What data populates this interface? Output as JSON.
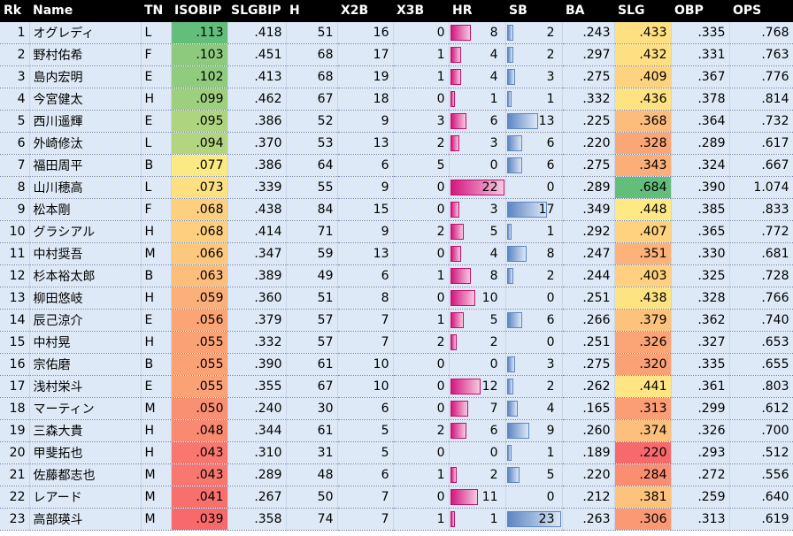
{
  "columns": [
    "Rk",
    "Name",
    "TN",
    "ISOBIP",
    "SLGBIP",
    "H",
    "X2B",
    "X3B",
    "HR",
    "SB",
    "BA",
    "SLG",
    "OBP",
    "OPS"
  ],
  "rows": [
    {
      "rk": "1",
      "name": "オグレディ",
      "tn": "L",
      "isobip": ".113",
      "slgbip": ".418",
      "h": "51",
      "x2b": "16",
      "x3b": "0",
      "hr": "8",
      "sb": "2",
      "ba": ".243",
      "slg": ".433",
      "obp": ".335",
      "ops": ".768"
    },
    {
      "rk": "2",
      "name": "野村佑希",
      "tn": "F",
      "isobip": ".103",
      "slgbip": ".451",
      "h": "68",
      "x2b": "17",
      "x3b": "1",
      "hr": "4",
      "sb": "2",
      "ba": ".297",
      "slg": ".432",
      "obp": ".331",
      "ops": ".763"
    },
    {
      "rk": "3",
      "name": "島内宏明",
      "tn": "E",
      "isobip": ".102",
      "slgbip": ".413",
      "h": "68",
      "x2b": "19",
      "x3b": "1",
      "hr": "4",
      "sb": "3",
      "ba": ".275",
      "slg": ".409",
      "obp": ".367",
      "ops": ".776"
    },
    {
      "rk": "4",
      "name": "今宮健太",
      "tn": "H",
      "isobip": ".099",
      "slgbip": ".462",
      "h": "67",
      "x2b": "18",
      "x3b": "0",
      "hr": "1",
      "sb": "1",
      "ba": ".332",
      "slg": ".436",
      "obp": ".378",
      "ops": ".814"
    },
    {
      "rk": "5",
      "name": "西川遥輝",
      "tn": "E",
      "isobip": ".095",
      "slgbip": ".386",
      "h": "52",
      "x2b": "9",
      "x3b": "3",
      "hr": "6",
      "sb": "13",
      "ba": ".225",
      "slg": ".368",
      "obp": ".364",
      "ops": ".732"
    },
    {
      "rk": "6",
      "name": "外崎修汰",
      "tn": "L",
      "isobip": ".094",
      "slgbip": ".370",
      "h": "53",
      "x2b": "13",
      "x3b": "2",
      "hr": "3",
      "sb": "6",
      "ba": ".220",
      "slg": ".328",
      "obp": ".289",
      "ops": ".617"
    },
    {
      "rk": "7",
      "name": "福田周平",
      "tn": "B",
      "isobip": ".077",
      "slgbip": ".386",
      "h": "64",
      "x2b": "6",
      "x3b": "5",
      "hr": "0",
      "sb": "6",
      "ba": ".275",
      "slg": ".343",
      "obp": ".324",
      "ops": ".667"
    },
    {
      "rk": "8",
      "name": "山川穂高",
      "tn": "L",
      "isobip": ".073",
      "slgbip": ".339",
      "h": "55",
      "x2b": "9",
      "x3b": "0",
      "hr": "22",
      "sb": "0",
      "ba": ".289",
      "slg": ".684",
      "obp": ".390",
      "ops": "1.074"
    },
    {
      "rk": "9",
      "name": "松本剛",
      "tn": "F",
      "isobip": ".068",
      "slgbip": ".438",
      "h": "84",
      "x2b": "15",
      "x3b": "0",
      "hr": "3",
      "sb": "17",
      "ba": ".349",
      "slg": ".448",
      "obp": ".385",
      "ops": ".833"
    },
    {
      "rk": "10",
      "name": "グラシアル",
      "tn": "H",
      "isobip": ".068",
      "slgbip": ".414",
      "h": "71",
      "x2b": "9",
      "x3b": "2",
      "hr": "5",
      "sb": "1",
      "ba": ".292",
      "slg": ".407",
      "obp": ".365",
      "ops": ".772"
    },
    {
      "rk": "11",
      "name": "中村奨吾",
      "tn": "M",
      "isobip": ".066",
      "slgbip": ".347",
      "h": "59",
      "x2b": "13",
      "x3b": "0",
      "hr": "4",
      "sb": "8",
      "ba": ".247",
      "slg": ".351",
      "obp": ".330",
      "ops": ".681"
    },
    {
      "rk": "12",
      "name": "杉本裕太郎",
      "tn": "B",
      "isobip": ".063",
      "slgbip": ".389",
      "h": "49",
      "x2b": "6",
      "x3b": "1",
      "hr": "8",
      "sb": "2",
      "ba": ".244",
      "slg": ".403",
      "obp": ".325",
      "ops": ".728"
    },
    {
      "rk": "13",
      "name": "柳田悠岐",
      "tn": "H",
      "isobip": ".059",
      "slgbip": ".360",
      "h": "51",
      "x2b": "8",
      "x3b": "0",
      "hr": "10",
      "sb": "0",
      "ba": ".251",
      "slg": ".438",
      "obp": ".328",
      "ops": ".766"
    },
    {
      "rk": "14",
      "name": "辰己涼介",
      "tn": "E",
      "isobip": ".056",
      "slgbip": ".379",
      "h": "57",
      "x2b": "7",
      "x3b": "1",
      "hr": "5",
      "sb": "6",
      "ba": ".266",
      "slg": ".379",
      "obp": ".362",
      "ops": ".740"
    },
    {
      "rk": "15",
      "name": "中村晃",
      "tn": "H",
      "isobip": ".055",
      "slgbip": ".332",
      "h": "57",
      "x2b": "7",
      "x3b": "2",
      "hr": "2",
      "sb": "0",
      "ba": ".251",
      "slg": ".326",
      "obp": ".327",
      "ops": ".653"
    },
    {
      "rk": "16",
      "name": "宗佑磨",
      "tn": "B",
      "isobip": ".055",
      "slgbip": ".390",
      "h": "61",
      "x2b": "10",
      "x3b": "0",
      "hr": "0",
      "sb": "3",
      "ba": ".275",
      "slg": ".320",
      "obp": ".335",
      "ops": ".655"
    },
    {
      "rk": "17",
      "name": "浅村栄斗",
      "tn": "E",
      "isobip": ".055",
      "slgbip": ".355",
      "h": "67",
      "x2b": "10",
      "x3b": "0",
      "hr": "12",
      "sb": "2",
      "ba": ".262",
      "slg": ".441",
      "obp": ".361",
      "ops": ".803"
    },
    {
      "rk": "18",
      "name": "マーティン",
      "tn": "M",
      "isobip": ".050",
      "slgbip": ".240",
      "h": "30",
      "x2b": "6",
      "x3b": "0",
      "hr": "7",
      "sb": "4",
      "ba": ".165",
      "slg": ".313",
      "obp": ".299",
      "ops": ".612"
    },
    {
      "rk": "19",
      "name": "三森大貴",
      "tn": "H",
      "isobip": ".048",
      "slgbip": ".344",
      "h": "61",
      "x2b": "5",
      "x3b": "2",
      "hr": "6",
      "sb": "9",
      "ba": ".260",
      "slg": ".374",
      "obp": ".326",
      "ops": ".700"
    },
    {
      "rk": "20",
      "name": "甲斐拓也",
      "tn": "H",
      "isobip": ".043",
      "slgbip": ".310",
      "h": "31",
      "x2b": "5",
      "x3b": "0",
      "hr": "0",
      "sb": "1",
      "ba": ".189",
      "slg": ".220",
      "obp": ".293",
      "ops": ".512"
    },
    {
      "rk": "21",
      "name": "佐藤都志也",
      "tn": "M",
      "isobip": ".043",
      "slgbip": ".289",
      "h": "48",
      "x2b": "6",
      "x3b": "1",
      "hr": "2",
      "sb": "5",
      "ba": ".220",
      "slg": ".284",
      "obp": ".272",
      "ops": ".556"
    },
    {
      "rk": "22",
      "name": "レアード",
      "tn": "M",
      "isobip": ".041",
      "slgbip": ".267",
      "h": "50",
      "x2b": "7",
      "x3b": "0",
      "hr": "11",
      "sb": "0",
      "ba": ".212",
      "slg": ".381",
      "obp": ".259",
      "ops": ".640"
    },
    {
      "rk": "23",
      "name": "高部瑛斗",
      "tn": "M",
      "isobip": ".039",
      "slgbip": ".358",
      "h": "74",
      "x2b": "7",
      "x3b": "1",
      "hr": "1",
      "sb": "23",
      "ba": ".263",
      "slg": ".306",
      "obp": ".313",
      "ops": ".619"
    }
  ],
  "scales": {
    "isobip_min": 0.039,
    "isobip_max": 0.113,
    "slg_min": 0.22,
    "slg_max": 0.684,
    "hr_max": 22,
    "sb_max": 23
  },
  "colors": {
    "header_bg": "#000000",
    "header_text": "#ffffff",
    "row_bg": "#dde9f6",
    "scale_low": "#f8696b",
    "scale_mid": "#ffeb84",
    "scale_high": "#63be7b",
    "hr_bar": "#d4177d",
    "sb_bar": "#5e86c2"
  }
}
